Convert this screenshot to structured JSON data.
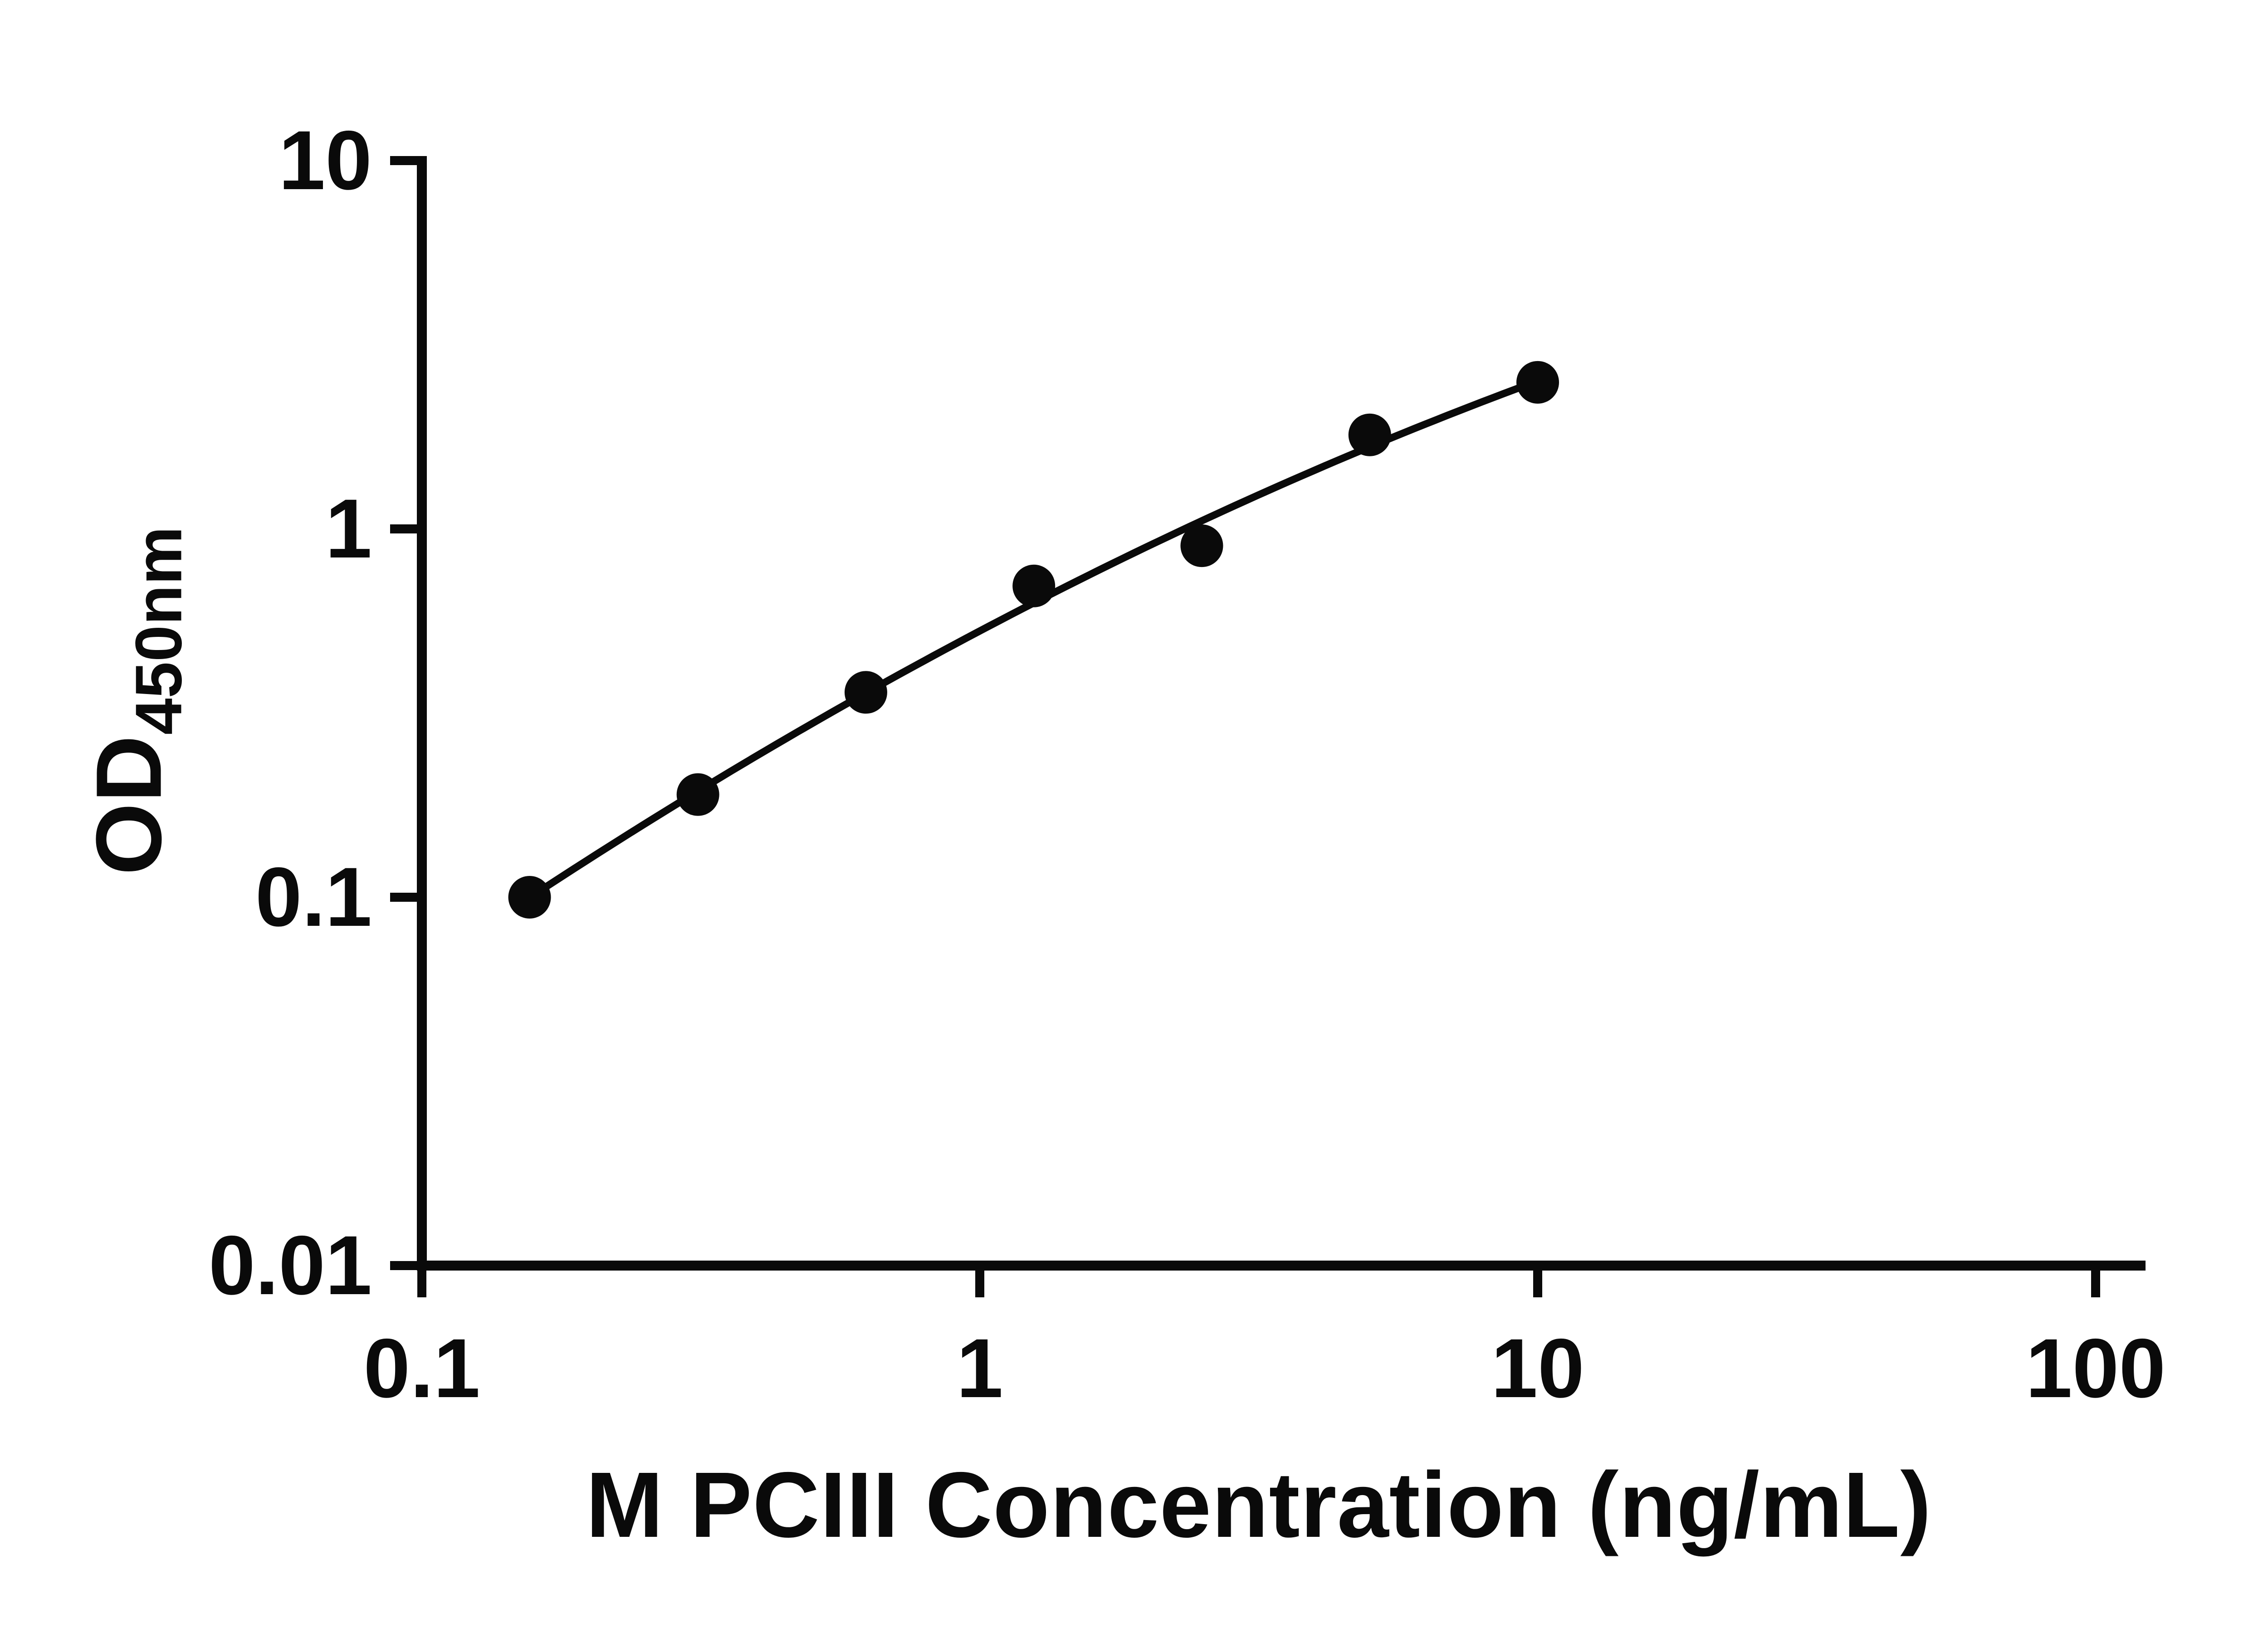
{
  "colors": {
    "ink": "#0a0a0a",
    "background": "#ffffff"
  },
  "chart_data": {
    "type": "scatter",
    "title": "",
    "xlabel": "M PCIII Concentration (ng/mL)",
    "ylabel_main": "OD",
    "ylabel_sub": "450nm",
    "xscale": "log",
    "yscale": "log",
    "xlim": [
      0.1,
      100
    ],
    "ylim": [
      0.01,
      10
    ],
    "x_ticks": [
      0.1,
      1,
      10,
      100
    ],
    "x_tick_labels": [
      "0.1",
      "1",
      "10",
      "100"
    ],
    "y_ticks": [
      0.01,
      0.1,
      1,
      10
    ],
    "y_tick_labels": [
      "0.01",
      "0.1",
      "1",
      "10"
    ],
    "grid": false,
    "legend": "none",
    "fit": "quadratic-loglog",
    "x": [
      0.156,
      0.3125,
      0.625,
      1.25,
      2.5,
      5,
      10
    ],
    "y": [
      0.1,
      0.19,
      0.36,
      0.7,
      0.9,
      1.8,
      2.5
    ],
    "marker": "circle",
    "marker_color": "#0a0a0a",
    "line_color": "#0a0a0a"
  }
}
